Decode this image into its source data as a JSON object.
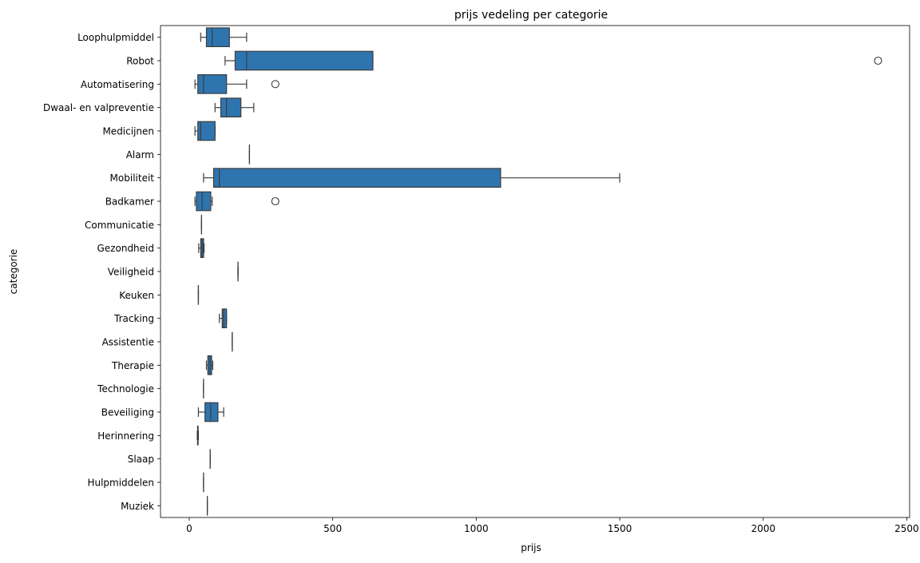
{
  "chart_data": {
    "type": "boxplot",
    "orientation": "horizontal",
    "title": "prijs vedeling per categorie",
    "xlabel": "prijs",
    "ylabel": "categorie",
    "xlim": [
      -100,
      2510
    ],
    "xticks": [
      0,
      500,
      1000,
      1500,
      2000,
      2500
    ],
    "grid": false,
    "color": "#2e75b0",
    "line_color": "#3d3d3d",
    "categories": [
      {
        "name": "Loophulpmiddel",
        "whisker_low": 40,
        "q1": 60,
        "median": 80,
        "q3": 140,
        "whisker_high": 200,
        "outliers": []
      },
      {
        "name": "Robot",
        "whisker_low": 125,
        "q1": 160,
        "median": 200,
        "q3": 640,
        "whisker_high": 640,
        "outliers": [
          2400
        ]
      },
      {
        "name": "Automatisering",
        "whisker_low": 20,
        "q1": 30,
        "median": 50,
        "q3": 130,
        "whisker_high": 200,
        "outliers": [
          300
        ]
      },
      {
        "name": "Dwaal- en valpreventie",
        "whisker_low": 90,
        "q1": 110,
        "median": 130,
        "q3": 180,
        "whisker_high": 225,
        "outliers": []
      },
      {
        "name": "Medicijnen",
        "whisker_low": 20,
        "q1": 30,
        "median": 40,
        "q3": 90,
        "whisker_high": 90,
        "outliers": []
      },
      {
        "name": "Alarm",
        "whisker_low": 210,
        "q1": 210,
        "median": 210,
        "q3": 210,
        "whisker_high": 210,
        "outliers": []
      },
      {
        "name": "Mobiliteit",
        "whisker_low": 50,
        "q1": 85,
        "median": 105,
        "q3": 1085,
        "whisker_high": 1500,
        "outliers": []
      },
      {
        "name": "Badkamer",
        "whisker_low": 20,
        "q1": 25,
        "median": 45,
        "q3": 75,
        "whisker_high": 80,
        "outliers": [
          300
        ]
      },
      {
        "name": "Communicatie",
        "whisker_low": 43,
        "q1": 43,
        "median": 43,
        "q3": 43,
        "whisker_high": 43,
        "outliers": []
      },
      {
        "name": "Gezondheid",
        "whisker_low": 33,
        "q1": 40,
        "median": 45,
        "q3": 50,
        "whisker_high": 52,
        "outliers": []
      },
      {
        "name": "Veiligheid",
        "whisker_low": 170,
        "q1": 170,
        "median": 170,
        "q3": 170,
        "whisker_high": 170,
        "outliers": []
      },
      {
        "name": "Keuken",
        "whisker_low": 32,
        "q1": 32,
        "median": 32,
        "q3": 32,
        "whisker_high": 32,
        "outliers": []
      },
      {
        "name": "Tracking",
        "whisker_low": 105,
        "q1": 115,
        "median": 120,
        "q3": 130,
        "whisker_high": 130,
        "outliers": []
      },
      {
        "name": "Assistentie",
        "whisker_low": 150,
        "q1": 150,
        "median": 150,
        "q3": 150,
        "whisker_high": 150,
        "outliers": []
      },
      {
        "name": "Therapie",
        "whisker_low": 60,
        "q1": 65,
        "median": 72,
        "q3": 78,
        "whisker_high": 82,
        "outliers": []
      },
      {
        "name": "Technologie",
        "whisker_low": 50,
        "q1": 50,
        "median": 50,
        "q3": 50,
        "whisker_high": 50,
        "outliers": []
      },
      {
        "name": "Beveiliging",
        "whisker_low": 32,
        "q1": 55,
        "median": 75,
        "q3": 100,
        "whisker_high": 120,
        "outliers": []
      },
      {
        "name": "Herinnering",
        "whisker_low": 28,
        "q1": 29,
        "median": 30,
        "q3": 31,
        "whisker_high": 32,
        "outliers": []
      },
      {
        "name": "Slaap",
        "whisker_low": 73,
        "q1": 73,
        "median": 73,
        "q3": 73,
        "whisker_high": 73,
        "outliers": []
      },
      {
        "name": "Hulpmiddelen",
        "whisker_low": 50,
        "q1": 50,
        "median": 50,
        "q3": 50,
        "whisker_high": 50,
        "outliers": []
      },
      {
        "name": "Muziek",
        "whisker_low": 63,
        "q1": 63,
        "median": 63,
        "q3": 63,
        "whisker_high": 63,
        "outliers": []
      }
    ]
  }
}
